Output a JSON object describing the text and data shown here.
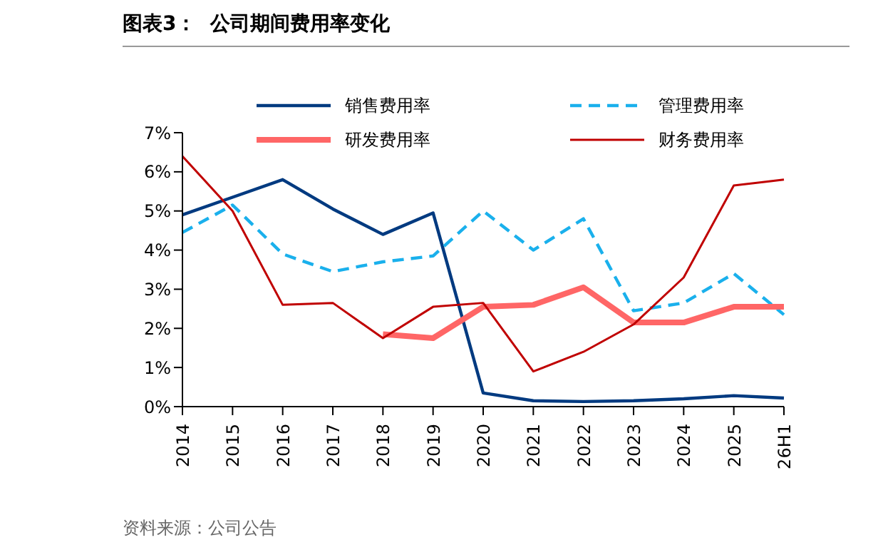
{
  "chart_data": {
    "type": "line",
    "title": "图表3：  公司期间费用率变化",
    "annotations": [
      "资料来源：公司公告"
    ],
    "categories": [
      "2014",
      "2015",
      "2016",
      "2017",
      "2018",
      "2019",
      "2020",
      "2021",
      "2022",
      "2023",
      "2024",
      "2025",
      "26H1"
    ],
    "series": [
      {
        "name": "销售费用率",
        "color": "#003a80",
        "values": [
          4.9,
          5.35,
          5.8,
          5.05,
          4.4,
          4.95,
          0.35,
          0.15,
          0.13,
          0.15,
          0.2,
          0.28,
          0.22
        ]
      },
      {
        "name": "管理费用率",
        "color": "#1ab0ec",
        "line_style": "dashed",
        "values": [
          4.45,
          5.15,
          3.9,
          3.45,
          3.7,
          3.85,
          5.0,
          4.0,
          4.8,
          2.45,
          2.65,
          3.4,
          2.35
        ]
      },
      {
        "name": "研发费用率",
        "color": "#ff6666",
        "values": [
          null,
          null,
          null,
          null,
          1.85,
          1.75,
          2.55,
          2.6,
          3.05,
          2.15,
          2.15,
          2.55,
          2.55
        ]
      },
      {
        "name": "财务费用率",
        "color": "#c00000",
        "values": [
          6.4,
          5.0,
          2.6,
          2.65,
          1.75,
          2.55,
          2.65,
          0.9,
          1.4,
          2.1,
          3.3,
          5.65,
          5.8
        ]
      }
    ],
    "ylim": [
      0,
      7
    ],
    "yticks": [
      {
        "value": 0,
        "label": "0%"
      },
      {
        "value": 1,
        "label": "1%"
      },
      {
        "value": 2,
        "label": "2%"
      },
      {
        "value": 3,
        "label": "3%"
      },
      {
        "value": 4,
        "label": "4%"
      },
      {
        "value": 5,
        "label": "5%"
      },
      {
        "value": 6,
        "label": "6%"
      },
      {
        "value": 7,
        "label": "7%"
      }
    ],
    "grid": false,
    "legend": "top",
    "marker": "none",
    "line_style": "solid"
  }
}
